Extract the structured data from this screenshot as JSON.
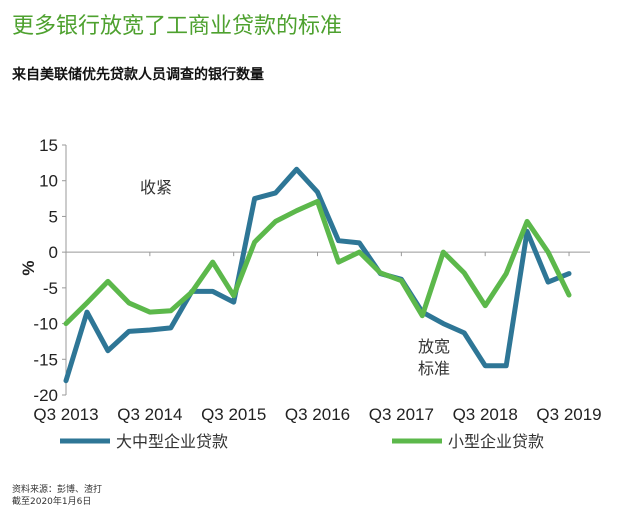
{
  "title": "更多银行放宽了工商业贷款的标准",
  "subtitle": "来自美联储优先贷款人员调查的银行数量",
  "footer": {
    "source": "资料来源：彭博、渣打",
    "date": "截至2020年1月6日"
  },
  "colors": {
    "title": "#4ea12f",
    "large": "#2e7696",
    "small": "#5cb84b"
  },
  "chart_data": {
    "type": "line",
    "title": "",
    "xlabel": "",
    "ylabel": "%",
    "ylim": [
      -20,
      15
    ],
    "yticks": [
      15,
      10,
      5,
      0,
      -5,
      -10,
      -15,
      -20
    ],
    "xlim": [
      0,
      25
    ],
    "x_tick_positions": [
      0,
      4,
      8,
      12,
      16,
      20,
      24
    ],
    "x_tick_labels": [
      "Q3 2013",
      "Q3 2014",
      "Q3 2015",
      "Q3 2016",
      "Q3 2017",
      "Q3 2018",
      "Q3 2019"
    ],
    "series": [
      {
        "name": "大中型企业贷款",
        "color": "#2e7696",
        "values": [
          -18,
          -8.4,
          -13.8,
          -11.1,
          -10.9,
          -10.6,
          -5.5,
          -5.5,
          -7,
          7.5,
          8.3,
          11.6,
          8.4,
          1.6,
          1.3,
          -3,
          -3.8,
          -8.4,
          -10,
          -11.3,
          -15.9,
          -15.9,
          2.9,
          -4.2,
          -3
        ]
      },
      {
        "name": "小型企业贷款",
        "color": "#5cb84b",
        "values": [
          -10,
          -7.1,
          -4.1,
          -7.1,
          -8.4,
          -8.2,
          -5.6,
          -1.4,
          -6.1,
          1.4,
          4.3,
          5.8,
          7.1,
          -1.4,
          0,
          -2.9,
          -4,
          -8.9,
          0,
          -2.9,
          -7.5,
          -3,
          4.3,
          0,
          -6
        ]
      }
    ],
    "annotations": [
      {
        "text": "收紧"
      },
      {
        "text": "放宽"
      },
      {
        "text": "标准"
      }
    ]
  }
}
